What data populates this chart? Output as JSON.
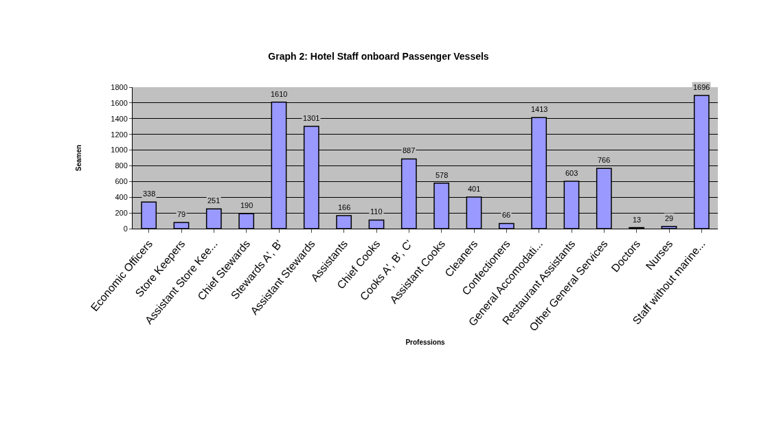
{
  "chart_data": {
    "type": "bar",
    "title": "Graph 2: Hotel Staff onboard Passenger Vessels",
    "xlabel": "Professions",
    "ylabel": "Seamen",
    "categories": [
      "Economic Officers",
      "Store Keepers",
      "Assistant Store Kee...",
      "Chief Stewards",
      "Stewards A', B'",
      "Assistant Stewards",
      "Assistants",
      "Chief Cooks",
      "Cooks A', B', C'",
      "Assistant Cooks",
      "Cleaners",
      "Confectioners",
      "General Accomodati...",
      "Restaurant Assistants",
      "Other General Services",
      "Doctors",
      "Nurses",
      "Staff without marine..."
    ],
    "values": [
      338,
      79,
      251,
      190,
      1610,
      1301,
      166,
      110,
      887,
      578,
      401,
      66,
      1413,
      603,
      766,
      13,
      29,
      1696
    ],
    "color": "#9999ff",
    "ylim": [
      0,
      1800
    ],
    "yticks": [
      0,
      200,
      400,
      600,
      800,
      1000,
      1200,
      1400,
      1600,
      1800
    ],
    "grid": "y",
    "data_labels": true,
    "legend": false
  }
}
